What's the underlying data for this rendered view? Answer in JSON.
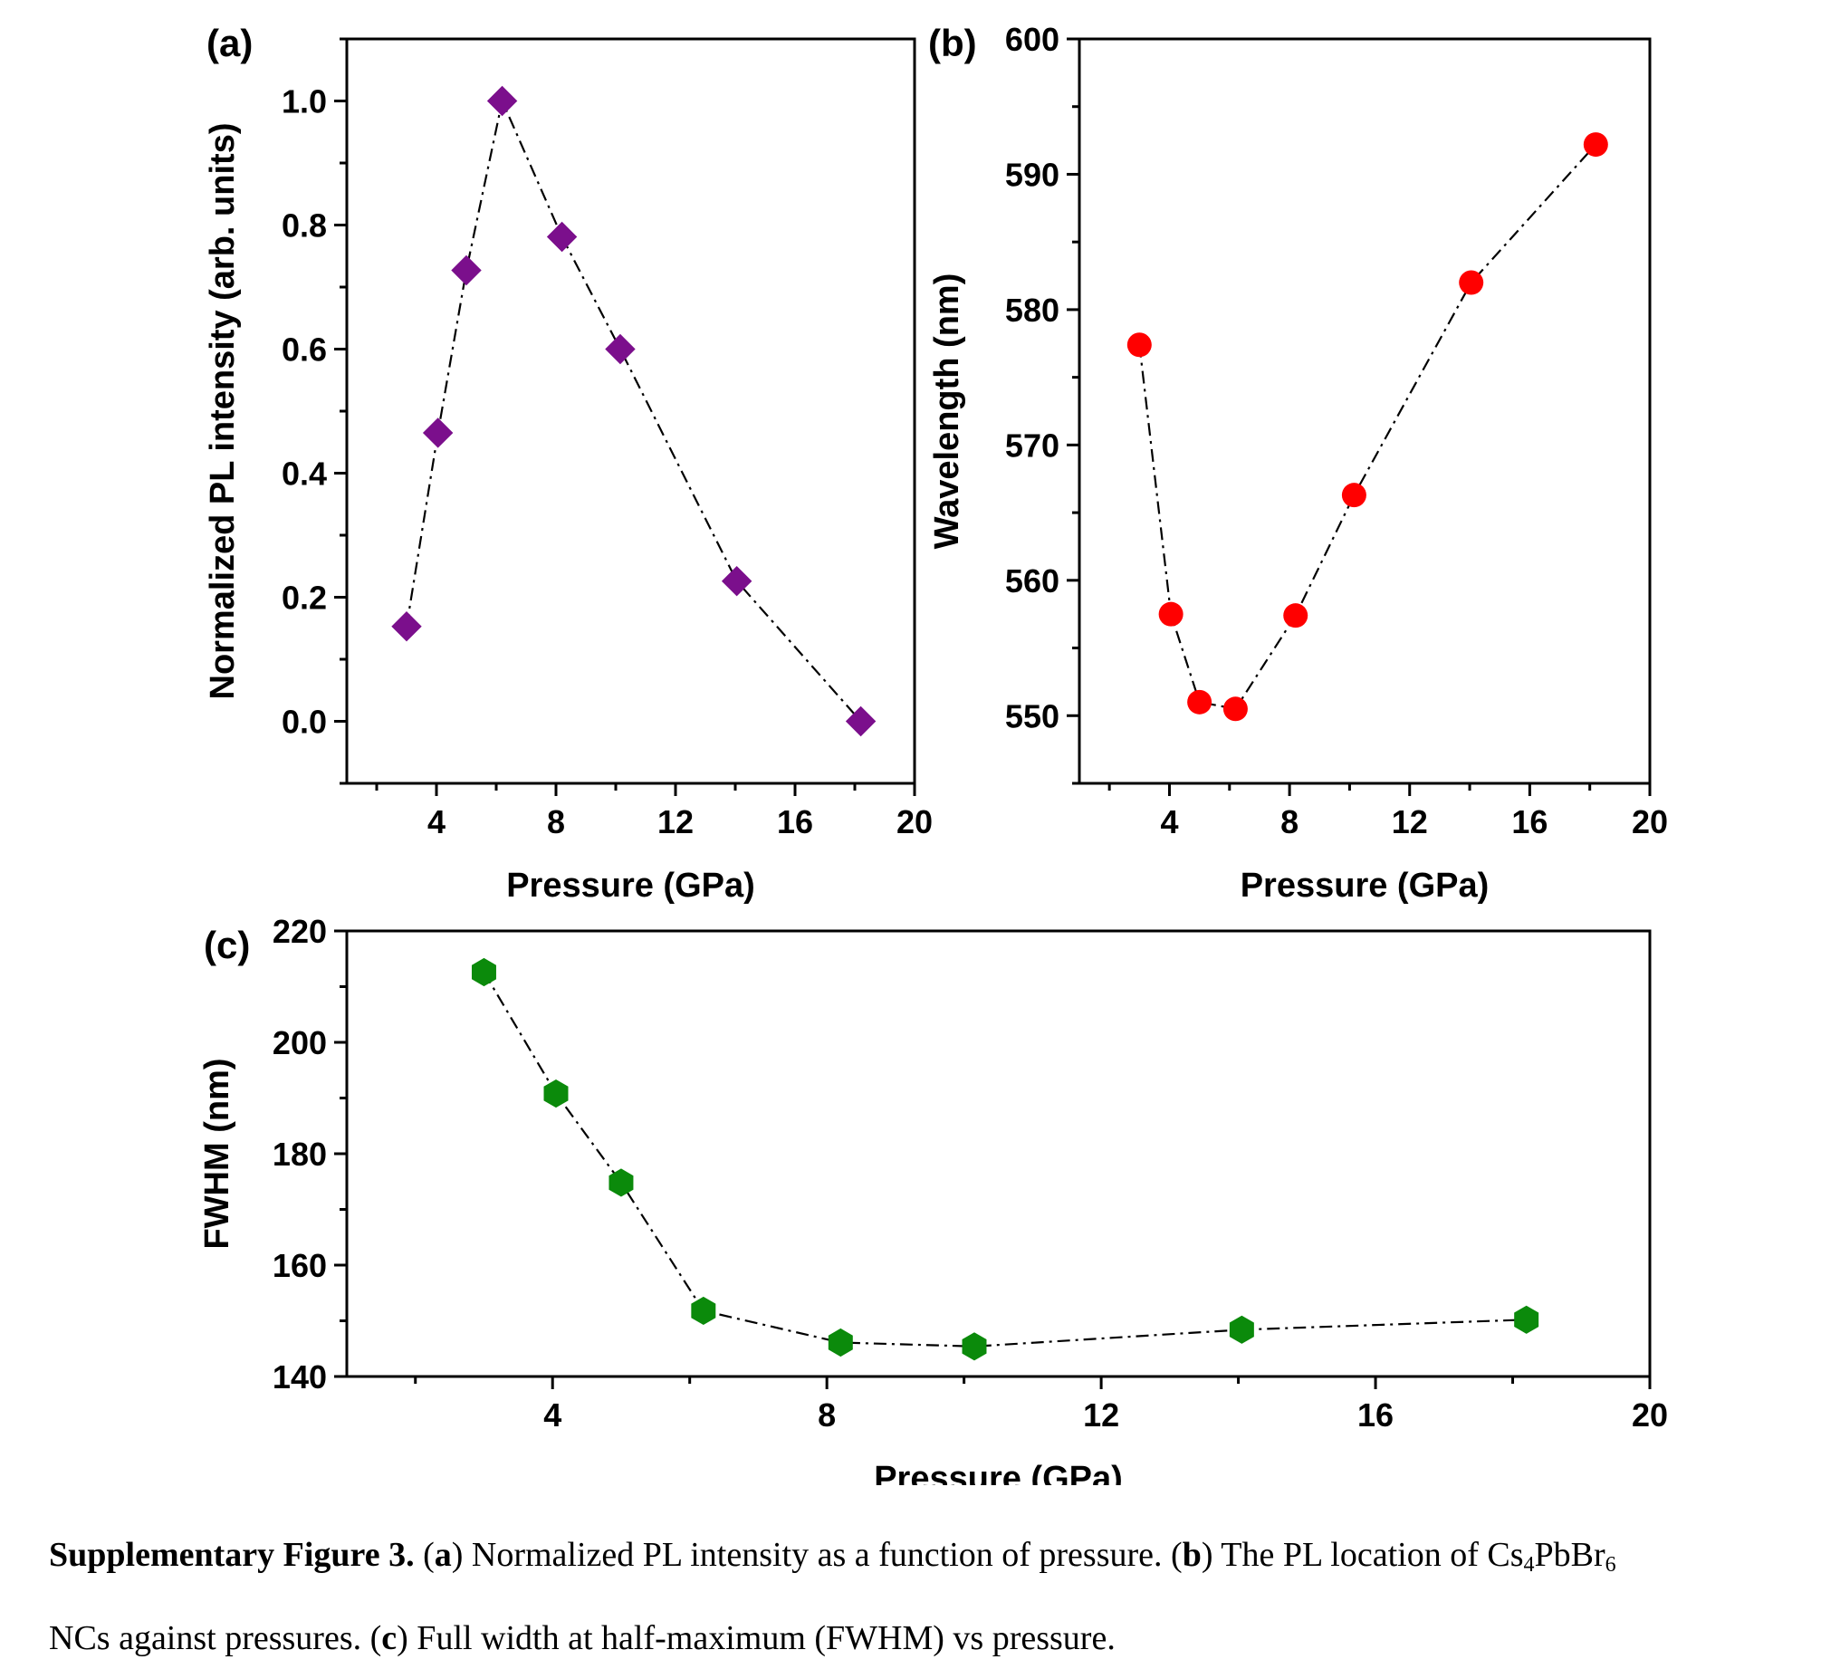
{
  "chart_data": [
    {
      "type": "line",
      "panel_label": "(a)",
      "xlabel": "Pressure (GPa)",
      "ylabel": "Normalized PL intensity (arb. units)",
      "xlim": [
        1,
        20
      ],
      "ylim": [
        -0.1,
        1.1
      ],
      "xticks": [
        4,
        8,
        12,
        16,
        20
      ],
      "yticks": [
        0.0,
        0.2,
        0.4,
        0.6,
        0.8,
        1.0
      ],
      "ytick_labels": [
        "0.0",
        "0.2",
        "0.4",
        "0.6",
        "0.8",
        "1.0"
      ],
      "series": [
        {
          "marker": "diamond",
          "color": "#7b0f8c",
          "line_style": "dash-dot",
          "x": [
            3.0,
            4.05,
            5.0,
            6.2,
            8.2,
            10.15,
            14.05,
            18.2
          ],
          "y": [
            0.153,
            0.465,
            0.727,
            1.0,
            0.781,
            0.6,
            0.226,
            0.0
          ]
        }
      ]
    },
    {
      "type": "line",
      "panel_label": "(b)",
      "xlabel": "Pressure (GPa)",
      "ylabel": "Wavelength (nm)",
      "xlim": [
        1,
        20
      ],
      "ylim": [
        545,
        600
      ],
      "xticks": [
        4,
        8,
        12,
        16,
        20
      ],
      "yticks": [
        550,
        560,
        570,
        580,
        590,
        600
      ],
      "ytick_labels": [
        "550",
        "560",
        "570",
        "580",
        "590",
        "600"
      ],
      "series": [
        {
          "marker": "circle",
          "color": "#ff0000",
          "line_style": "dash-dot",
          "x": [
            3.0,
            4.05,
            5.0,
            6.2,
            8.2,
            10.15,
            14.05,
            18.2
          ],
          "y": [
            577.4,
            557.5,
            551.0,
            550.5,
            557.4,
            566.3,
            582.0,
            592.2
          ]
        }
      ]
    },
    {
      "type": "line",
      "panel_label": "(c)",
      "xlabel": "Pressure (GPa)",
      "ylabel": "FWHM (nm)",
      "xlim": [
        1,
        20
      ],
      "ylim": [
        140,
        220
      ],
      "xticks": [
        4,
        8,
        12,
        16,
        20
      ],
      "yticks": [
        140,
        160,
        180,
        200,
        220
      ],
      "ytick_labels": [
        "140",
        "160",
        "180",
        "200",
        "220"
      ],
      "series": [
        {
          "marker": "hexagon",
          "color": "#0b8a0b",
          "line_style": "dash-dot",
          "x": [
            3.0,
            4.05,
            5.0,
            6.2,
            8.2,
            10.15,
            14.05,
            18.2
          ],
          "y": [
            212.6,
            190.8,
            174.8,
            151.8,
            146.1,
            145.4,
            148.4,
            150.2
          ]
        }
      ]
    }
  ],
  "caption": {
    "figure_label": "Supplementary Figure 3.",
    "line1": [
      {
        "text": "Supplementary Figure 3.",
        "bold": true
      },
      {
        "text": " (",
        "bold": false
      },
      {
        "text": "a",
        "bold": true
      },
      {
        "text": ") Normalized PL intensity as a function of pressure. (",
        "bold": false
      },
      {
        "text": "b",
        "bold": true
      },
      {
        "text": ") The PL location of Cs",
        "bold": false
      },
      {
        "text": "4",
        "sub": true
      },
      {
        "text": "PbBr",
        "bold": false
      },
      {
        "text": "6",
        "sub": true
      }
    ],
    "line2": [
      {
        "text": "NCs against pressures. (",
        "bold": false
      },
      {
        "text": "c",
        "bold": true
      },
      {
        "text": ") Full width at half-maximum (FWHM) vs pressure.",
        "bold": false
      }
    ]
  }
}
